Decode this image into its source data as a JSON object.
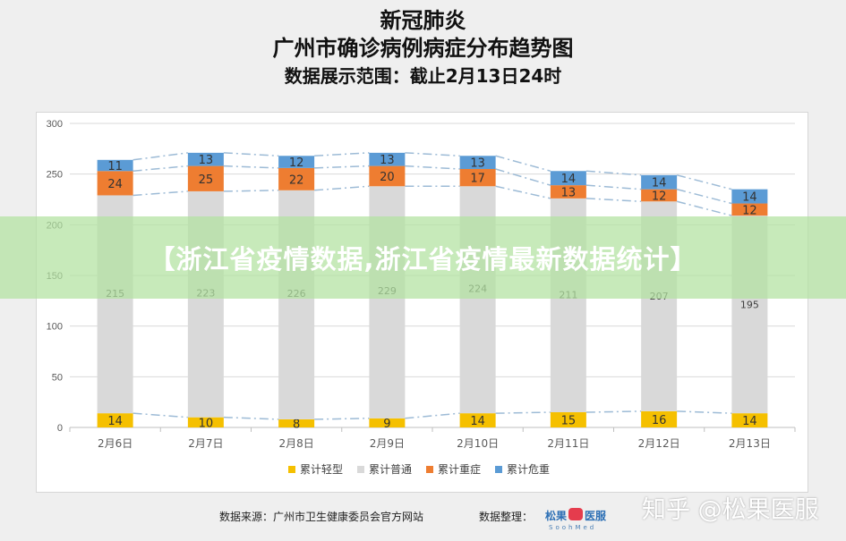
{
  "header": {
    "title1": "新冠肺炎",
    "title2": "广州市确诊病例病症分布趋势图",
    "title3": "数据展示范围：截止2月13日24时"
  },
  "banner": {
    "text": "【浙江省疫情数据,浙江省疫情最新数据统计】"
  },
  "footer": {
    "source": "数据来源：广州市卫生健康委员会官方网站",
    "organizer": "数据整理：",
    "logo_text": "松果医服",
    "logo_sub": "SoohMed",
    "watermark": "知乎 @松果医服"
  },
  "chart_data": {
    "type": "bar",
    "stacked": true,
    "categories": [
      "2月6日",
      "2月7日",
      "2月8日",
      "2月9日",
      "2月10日",
      "2月11日",
      "2月12日",
      "2月13日"
    ],
    "series": [
      {
        "name": "累计轻型",
        "color": "#f5c000",
        "values": [
          14,
          10,
          8,
          9,
          14,
          15,
          16,
          14
        ]
      },
      {
        "name": "累计普通",
        "color": "#d9d9d9",
        "values": [
          215,
          223,
          226,
          229,
          224,
          211,
          207,
          195
        ]
      },
      {
        "name": "累计重症",
        "color": "#ee7d31",
        "values": [
          24,
          25,
          22,
          20,
          17,
          13,
          12,
          12
        ]
      },
      {
        "name": "累计危重",
        "color": "#5b9bd5",
        "values": [
          11,
          13,
          12,
          13,
          13,
          14,
          14,
          14
        ]
      }
    ],
    "ylim": [
      0,
      300
    ],
    "yticks": [
      0,
      50,
      100,
      150,
      200,
      250,
      300
    ],
    "grid": true,
    "legend": "bottom",
    "connector_color": "#9dbbd6"
  }
}
